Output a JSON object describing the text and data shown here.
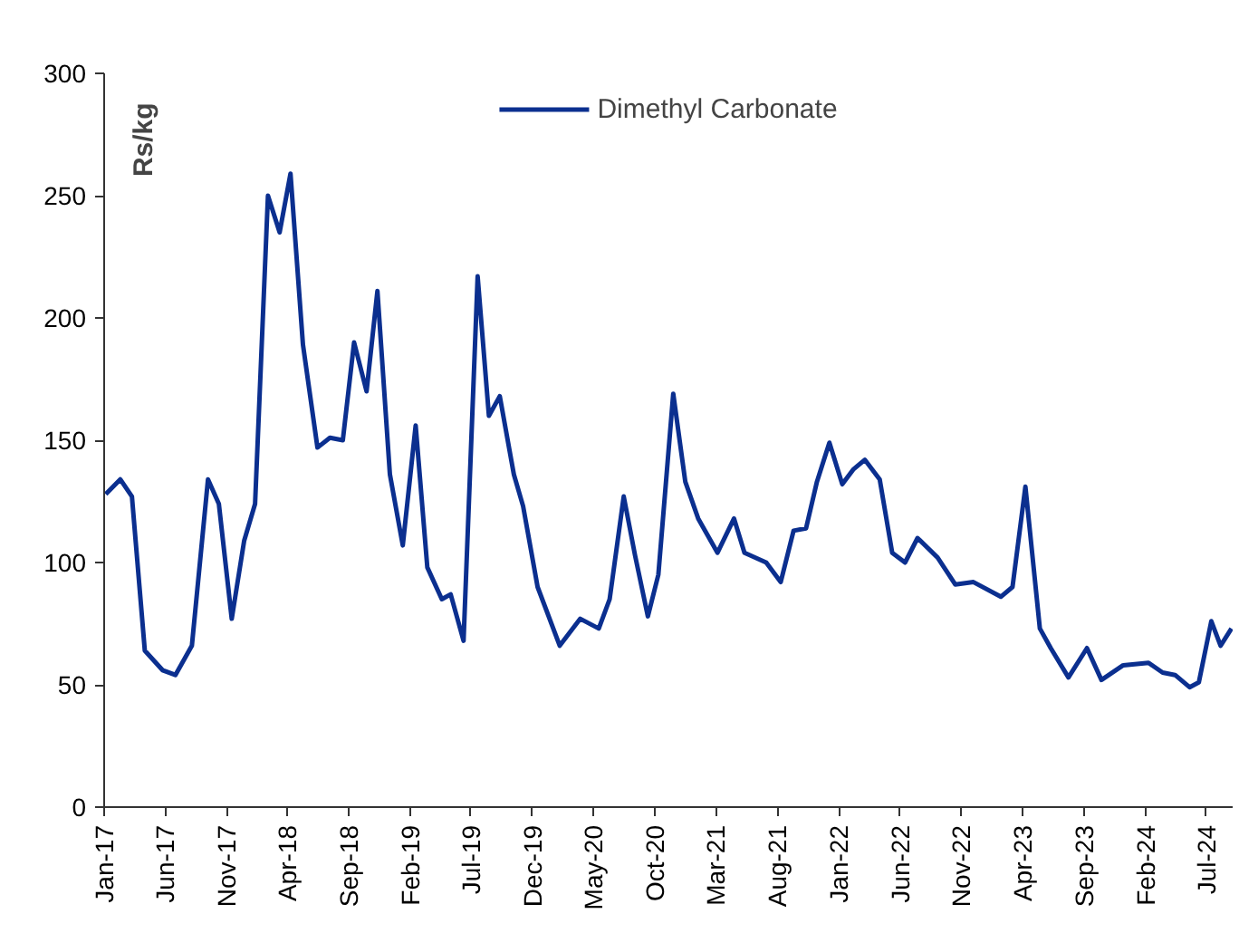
{
  "chart_data": {
    "type": "line",
    "ylabel": "Rs/kg",
    "legend": "top",
    "grid": false,
    "x": [
      "2017-01-05",
      "2017-02-10",
      "2017-03-11",
      "2017-04-12",
      "2017-05-26",
      "2017-06-27",
      "2017-08-07",
      "2017-09-16",
      "2017-10-13",
      "2017-11-14",
      "2017-12-15",
      "2018-01-11",
      "2018-02-12",
      "2018-03-13",
      "2018-04-09",
      "2018-05-10",
      "2018-06-15",
      "2018-07-16",
      "2018-08-17",
      "2018-09-14",
      "2018-10-15",
      "2018-11-11",
      "2018-12-12",
      "2019-01-13",
      "2019-02-14",
      "2019-03-15",
      "2019-04-20",
      "2019-05-12",
      "2019-06-13",
      "2019-07-18",
      "2019-08-15",
      "2019-09-11",
      "2019-10-16",
      "2019-11-08",
      "2019-12-14",
      "2020-02-07",
      "2020-03-29",
      "2020-05-14",
      "2020-06-10",
      "2020-07-15",
      "2020-08-12",
      "2020-09-13",
      "2020-10-09",
      "2020-11-15",
      "2020-12-15",
      "2021-01-16",
      "2021-03-05",
      "2021-04-15",
      "2021-05-11",
      "2021-07-04",
      "2021-08-09",
      "2021-09-10",
      "2021-10-11",
      "2021-11-07",
      "2021-12-08",
      "2022-01-09",
      "2022-02-05",
      "2022-03-06",
      "2022-04-12",
      "2022-05-13",
      "2022-06-14",
      "2022-07-15",
      "2022-09-03",
      "2022-10-17",
      "2022-12-01",
      "2023-02-07",
      "2023-03-08",
      "2023-04-09",
      "2023-05-15",
      "2023-06-11",
      "2023-07-25",
      "2023-09-09",
      "2023-10-15",
      "2023-12-08",
      "2024-02-09",
      "2024-03-15",
      "2024-04-15",
      "2024-05-21",
      "2024-06-13",
      "2024-07-14",
      "2024-08-06",
      "2024-09-02"
    ],
    "series": [
      {
        "name": "Dimethyl Carbonate",
        "color": "#0b2f8f",
        "values": [
          128,
          134,
          127,
          64,
          56,
          54,
          66,
          134,
          124,
          77,
          109,
          124,
          250,
          235,
          259,
          189,
          147,
          151,
          150,
          190,
          170,
          211,
          136,
          107,
          156,
          98,
          85,
          87,
          68,
          217,
          160,
          168,
          136,
          123,
          90,
          66,
          77,
          73,
          85,
          127,
          103,
          78,
          95,
          169,
          133,
          118,
          104,
          118,
          104,
          100,
          92,
          113,
          114,
          133,
          149,
          132,
          138,
          142,
          134,
          104,
          100,
          110,
          102,
          91,
          92,
          86,
          90,
          131,
          73,
          65,
          53,
          65,
          52,
          58,
          59,
          55,
          54,
          49,
          51,
          76,
          66,
          73
        ]
      }
    ],
    "xlim": [
      "2017-01-01",
      "2024-09-05"
    ],
    "xticks": [
      {
        "value": "2017-01",
        "label": "Jan-17"
      },
      {
        "value": "2017-06",
        "label": "Jun-17"
      },
      {
        "value": "2017-11",
        "label": "Nov-17"
      },
      {
        "value": "2018-04",
        "label": "Apr-18"
      },
      {
        "value": "2018-09",
        "label": "Sep-18"
      },
      {
        "value": "2019-02",
        "label": "Feb-19"
      },
      {
        "value": "2019-07",
        "label": "Jul-19"
      },
      {
        "value": "2019-12",
        "label": "Dec-19"
      },
      {
        "value": "2020-05",
        "label": "May-20"
      },
      {
        "value": "2020-10",
        "label": "Oct-20"
      },
      {
        "value": "2021-03",
        "label": "Mar-21"
      },
      {
        "value": "2021-08",
        "label": "Aug-21"
      },
      {
        "value": "2022-01",
        "label": "Jan-22"
      },
      {
        "value": "2022-06",
        "label": "Jun-22"
      },
      {
        "value": "2022-11",
        "label": "Nov-22"
      },
      {
        "value": "2023-04",
        "label": "Apr-23"
      },
      {
        "value": "2023-09",
        "label": "Sep-23"
      },
      {
        "value": "2024-02",
        "label": "Feb-24"
      },
      {
        "value": "2024-07",
        "label": "Jul-24"
      }
    ],
    "ylim": [
      0,
      300
    ],
    "yticks": [
      0,
      50,
      100,
      150,
      200,
      250,
      300
    ],
    "marker": "none",
    "line_style": "solid"
  }
}
